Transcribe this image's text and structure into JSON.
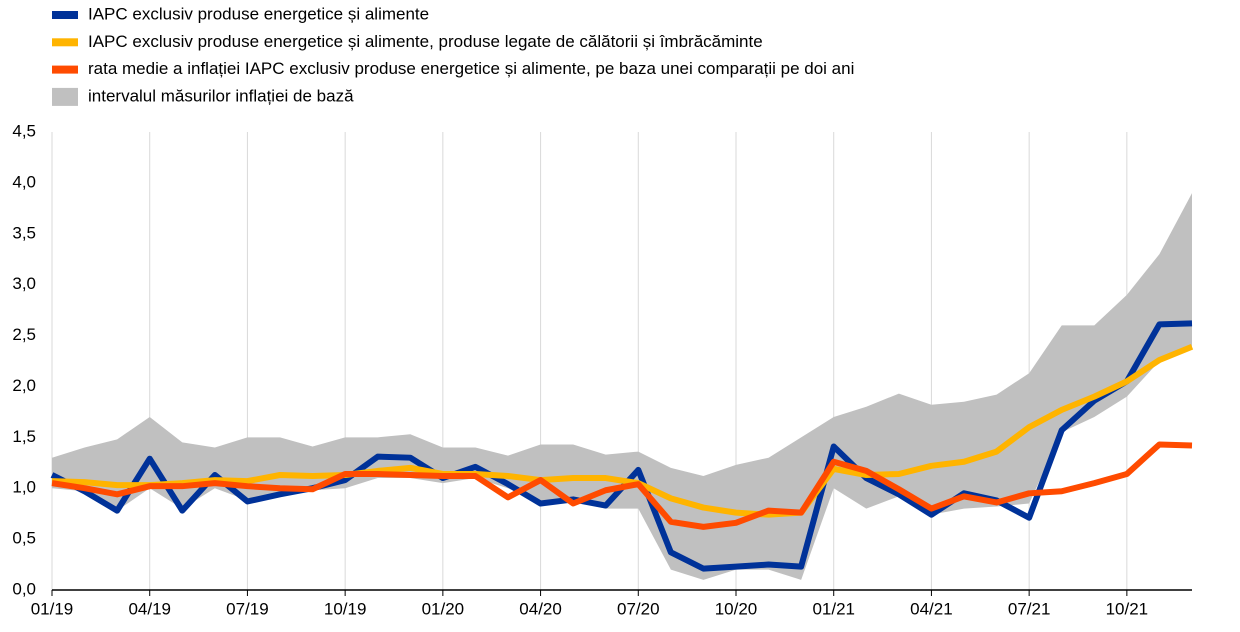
{
  "chart_data": {
    "type": "line",
    "categories": [
      "01/19",
      null,
      null,
      "04/19",
      null,
      null,
      "07/19",
      null,
      null,
      "10/19",
      null,
      null,
      "01/20",
      null,
      null,
      "04/20",
      null,
      null,
      "07/20",
      null,
      null,
      "10/20",
      null,
      null,
      "01/21",
      null,
      null,
      "04/21",
      null,
      null,
      "07/21",
      null,
      null,
      "10/21",
      null,
      null
    ],
    "series": [
      {
        "name": "IAPC exclusiv produse energetice și alimente",
        "color": "#003299",
        "values": [
          1.13,
          0.97,
          0.78,
          1.29,
          0.78,
          1.13,
          0.87,
          0.94,
          1.0,
          1.08,
          1.31,
          1.3,
          1.1,
          1.21,
          1.04,
          0.85,
          0.89,
          0.83,
          1.18,
          0.37,
          0.21,
          0.23,
          0.25,
          0.23,
          1.41,
          1.1,
          0.94,
          0.74,
          0.95,
          0.88,
          0.71,
          1.57,
          1.86,
          2.05,
          2.61,
          2.62
        ]
      },
      {
        "name": "IAPC exclusiv produse energetice și alimente, produse legate de călătorii și îmbrăcăminte",
        "color": "#ffb400",
        "values": [
          1.07,
          1.06,
          1.03,
          1.03,
          1.05,
          1.08,
          1.07,
          1.13,
          1.12,
          1.13,
          1.17,
          1.2,
          1.14,
          1.14,
          1.12,
          1.08,
          1.1,
          1.1,
          1.05,
          0.9,
          0.81,
          0.76,
          0.74,
          0.76,
          1.19,
          1.13,
          1.14,
          1.22,
          1.26,
          1.36,
          1.6,
          1.77,
          1.9,
          2.05,
          2.26,
          2.39
        ]
      },
      {
        "name": "rata medie a inflației IAPC exclusiv produse energetice și alimente, pe baza unei comparații pe doi ani",
        "color": "#ff4b00",
        "values": [
          1.05,
          1.0,
          0.94,
          1.02,
          1.02,
          1.05,
          1.02,
          1.0,
          0.99,
          1.14,
          1.14,
          1.13,
          1.12,
          1.12,
          0.91,
          1.08,
          0.85,
          0.98,
          1.04,
          0.67,
          0.62,
          0.66,
          0.78,
          0.76,
          1.26,
          1.17,
          0.99,
          0.8,
          0.92,
          0.86,
          0.95,
          0.97,
          1.05,
          1.14,
          1.43,
          1.42
        ]
      },
      {
        "name": "intervalul măsurilor inflației de bază",
        "color": "#c0c0c0",
        "type": "range",
        "upper": [
          1.3,
          1.4,
          1.48,
          1.7,
          1.45,
          1.4,
          1.5,
          1.5,
          1.41,
          1.5,
          1.5,
          1.53,
          1.4,
          1.4,
          1.32,
          1.43,
          1.43,
          1.33,
          1.36,
          1.2,
          1.12,
          1.23,
          1.3,
          1.5,
          1.7,
          1.8,
          1.93,
          1.82,
          1.85,
          1.92,
          2.13,
          2.6,
          2.6,
          2.9,
          3.3,
          3.9
        ],
        "lower": [
          1.0,
          0.97,
          0.78,
          1.0,
          0.8,
          1.0,
          0.88,
          0.95,
          0.98,
          1.0,
          1.1,
          1.1,
          1.05,
          1.1,
          1.0,
          0.85,
          0.87,
          0.8,
          0.8,
          0.2,
          0.1,
          0.2,
          0.2,
          0.1,
          1.0,
          0.8,
          0.92,
          0.74,
          0.8,
          0.82,
          0.85,
          1.55,
          1.7,
          1.9,
          2.25,
          2.38
        ]
      }
    ],
    "ylim": [
      0,
      4.5
    ],
    "yticks": [
      {
        "value": 0,
        "label": "0,0"
      },
      {
        "value": 0.5,
        "label": "0,5"
      },
      {
        "value": 1,
        "label": "1,0"
      },
      {
        "value": 1.5,
        "label": "1,5"
      },
      {
        "value": 2,
        "label": "2,0"
      },
      {
        "value": 2.5,
        "label": "2,5"
      },
      {
        "value": 3,
        "label": "3,0"
      },
      {
        "value": 3.5,
        "label": "3,5"
      },
      {
        "value": 4,
        "label": "4,0"
      },
      {
        "value": 4.5,
        "label": "4,5"
      }
    ],
    "grid": true
  }
}
